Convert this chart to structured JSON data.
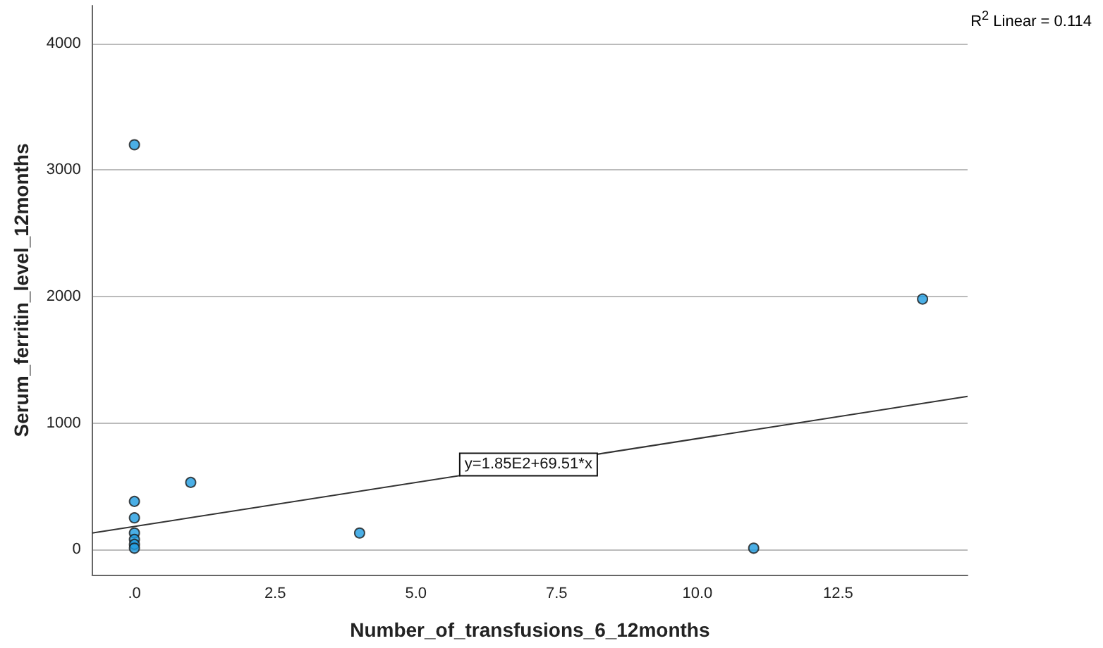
{
  "chart_data": {
    "type": "scatter",
    "xlabel": "Number_of_transfusions_6_12months",
    "ylabel": "Serum_ferritin_level_12months",
    "xlim": [
      -0.75,
      14.8
    ],
    "ylim": [
      -200,
      4300
    ],
    "xticks": [
      {
        "value": 0,
        "label": ".0"
      },
      2.5,
      {
        "value": 5,
        "label": "5.0"
      },
      7.5,
      {
        "value": 10,
        "label": "10.0"
      },
      12.5
    ],
    "yticks": [
      0,
      1000,
      2000,
      3000,
      4000
    ],
    "grid": "y",
    "marker": "circle",
    "series": [
      {
        "color": "#1e9be0",
        "x": [
          0,
          0,
          0,
          0,
          0,
          0,
          0,
          1,
          4,
          11,
          14
        ],
        "values": [
          3200,
          380,
          250,
          130,
          80,
          40,
          10,
          530,
          130,
          10,
          1980
        ]
      },
      {
        "type": "line",
        "color": "#333333",
        "marker": "none",
        "line_style": "solid",
        "x": [
          -0.75,
          14.8
        ],
        "values": [
          130,
          1210
        ]
      }
    ],
    "annotations": [
      "R$^{2}$ Linear = 0.114",
      {
        "text": "y=1.85E2+69.51*x",
        "x": 7,
        "y": 672
      }
    ]
  }
}
